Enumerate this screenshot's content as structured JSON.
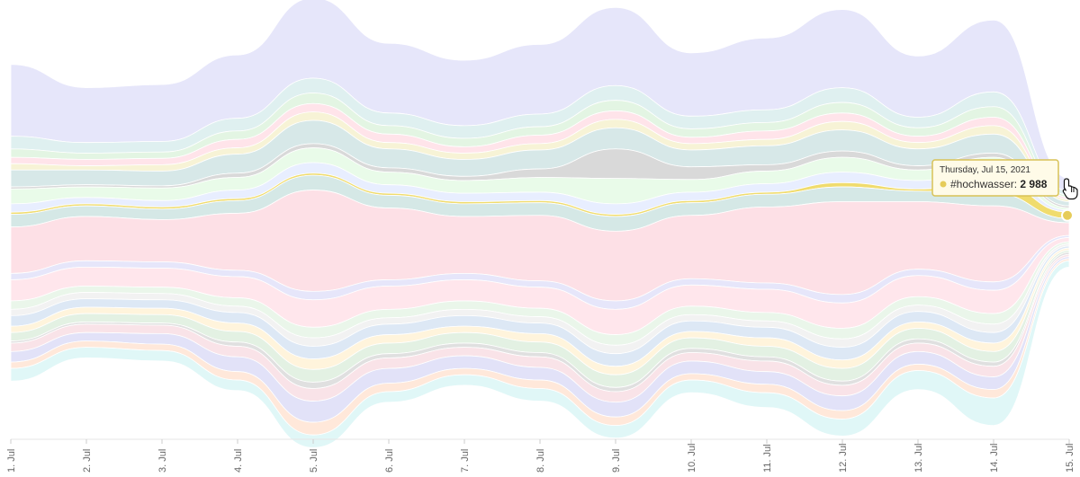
{
  "chart_data": {
    "type": "area",
    "subtype": "streamgraph",
    "title": "",
    "xlabel": "",
    "ylabel": "",
    "categories": [
      "1. Jul",
      "2. Jul",
      "3. Jul",
      "4. Jul",
      "5. Jul",
      "6. Jul",
      "7. Jul",
      "8. Jul",
      "9. Jul",
      "10. Jul",
      "11. Jul",
      "12. Jul",
      "13. Jul",
      "14. Jul",
      "15. Jul"
    ],
    "grid": false,
    "legend": "none",
    "series": [
      {
        "color": "#e6e6fa",
        "values": [
          34,
          26,
          27,
          30,
          38,
          33,
          31,
          33,
          37,
          30,
          34,
          37,
          29,
          34,
          6
        ]
      },
      {
        "color": "#dff0f0",
        "values": [
          6,
          5,
          5,
          6,
          7,
          6,
          6,
          6,
          7,
          6,
          6,
          7,
          5,
          7,
          2
        ]
      },
      {
        "color": "#e3f5e3",
        "values": [
          4,
          3,
          3,
          4,
          5,
          4,
          4,
          4,
          5,
          4,
          4,
          5,
          4,
          5,
          1
        ]
      },
      {
        "color": "#ffe4ea",
        "values": [
          3,
          3,
          3,
          4,
          4,
          4,
          3,
          4,
          4,
          3,
          4,
          4,
          3,
          4,
          1
        ]
      },
      {
        "color": "#f7f3d6",
        "values": [
          3,
          2,
          3,
          3,
          4,
          3,
          3,
          3,
          4,
          3,
          3,
          4,
          3,
          4,
          1
        ]
      },
      {
        "color": "#d7e8e8",
        "values": [
          8,
          7,
          7,
          9,
          11,
          9,
          8,
          9,
          10,
          8,
          9,
          10,
          8,
          9,
          2
        ]
      },
      {
        "color": "#d9d9d9",
        "values": [
          1,
          1,
          1,
          2,
          2,
          2,
          2,
          4,
          14,
          6,
          3,
          3,
          2,
          2,
          1
        ]
      },
      {
        "color": "#e9fbe9",
        "values": [
          7,
          5,
          6,
          6,
          7,
          6,
          6,
          7,
          12,
          6,
          6,
          7,
          5,
          6,
          1
        ]
      },
      {
        "color": "#e8eeff",
        "values": [
          4,
          3,
          3,
          4,
          5,
          4,
          4,
          4,
          5,
          4,
          4,
          5,
          4,
          5,
          1
        ]
      },
      {
        "name": "#hochwasser",
        "color": "#f0dc6e",
        "values": [
          1,
          1,
          1,
          1,
          1,
          1,
          1,
          1,
          1,
          1,
          1,
          2,
          1,
          6,
          3
        ]
      },
      {
        "color": "#d5e8e6",
        "values": [
          6,
          5,
          5,
          6,
          7,
          6,
          6,
          6,
          7,
          6,
          6,
          7,
          5,
          6,
          2
        ]
      },
      {
        "color": "#fde0e6",
        "values": [
          22,
          21,
          20,
          27,
          48,
          34,
          27,
          31,
          33,
          30,
          36,
          44,
          32,
          36,
          6
        ]
      },
      {
        "color": "#e6e6fa",
        "values": [
          3,
          3,
          3,
          3,
          4,
          3,
          3,
          3,
          4,
          3,
          3,
          4,
          3,
          4,
          1
        ]
      },
      {
        "color": "#ffe6ec",
        "values": [
          10,
          9,
          9,
          10,
          13,
          11,
          10,
          10,
          12,
          10,
          11,
          12,
          10,
          11,
          2
        ]
      },
      {
        "color": "#eaf6ea",
        "values": [
          4,
          3,
          3,
          4,
          5,
          4,
          4,
          4,
          5,
          4,
          4,
          5,
          4,
          5,
          1
        ]
      },
      {
        "color": "#f2f2f2",
        "values": [
          3,
          3,
          3,
          3,
          4,
          3,
          3,
          3,
          4,
          3,
          3,
          4,
          3,
          4,
          1
        ]
      },
      {
        "color": "#dde8f5",
        "values": [
          5,
          4,
          4,
          5,
          6,
          5,
          5,
          5,
          6,
          5,
          5,
          6,
          5,
          5,
          1
        ]
      },
      {
        "color": "#fff4dc",
        "values": [
          3,
          3,
          3,
          4,
          5,
          4,
          3,
          4,
          4,
          3,
          4,
          4,
          3,
          4,
          1
        ]
      },
      {
        "color": "#e3f1e3",
        "values": [
          4,
          4,
          4,
          5,
          6,
          5,
          5,
          5,
          6,
          5,
          5,
          6,
          5,
          5,
          1
        ]
      },
      {
        "color": "#e0e0e0",
        "values": [
          1,
          1,
          1,
          2,
          3,
          2,
          2,
          2,
          2,
          2,
          2,
          2,
          2,
          2,
          1
        ]
      },
      {
        "color": "#f9e3e8",
        "values": [
          4,
          4,
          4,
          5,
          6,
          5,
          4,
          5,
          5,
          4,
          5,
          5,
          4,
          5,
          1
        ]
      },
      {
        "color": "#e2e2f8",
        "values": [
          5,
          4,
          5,
          7,
          10,
          7,
          6,
          6,
          7,
          6,
          6,
          7,
          6,
          6,
          1
        ]
      },
      {
        "color": "#ffe8da",
        "values": [
          3,
          3,
          3,
          4,
          6,
          4,
          3,
          4,
          4,
          3,
          4,
          4,
          3,
          4,
          1
        ]
      },
      {
        "color": "#e0f7f7",
        "values": [
          6,
          5,
          5,
          5,
          6,
          5,
          5,
          6,
          6,
          6,
          7,
          8,
          9,
          13,
          3
        ]
      }
    ]
  },
  "tooltip": {
    "date": "Thursday, Jul 15, 2021",
    "series": "#hochwasser",
    "value": "2 988",
    "color": "#e6cc5a"
  }
}
